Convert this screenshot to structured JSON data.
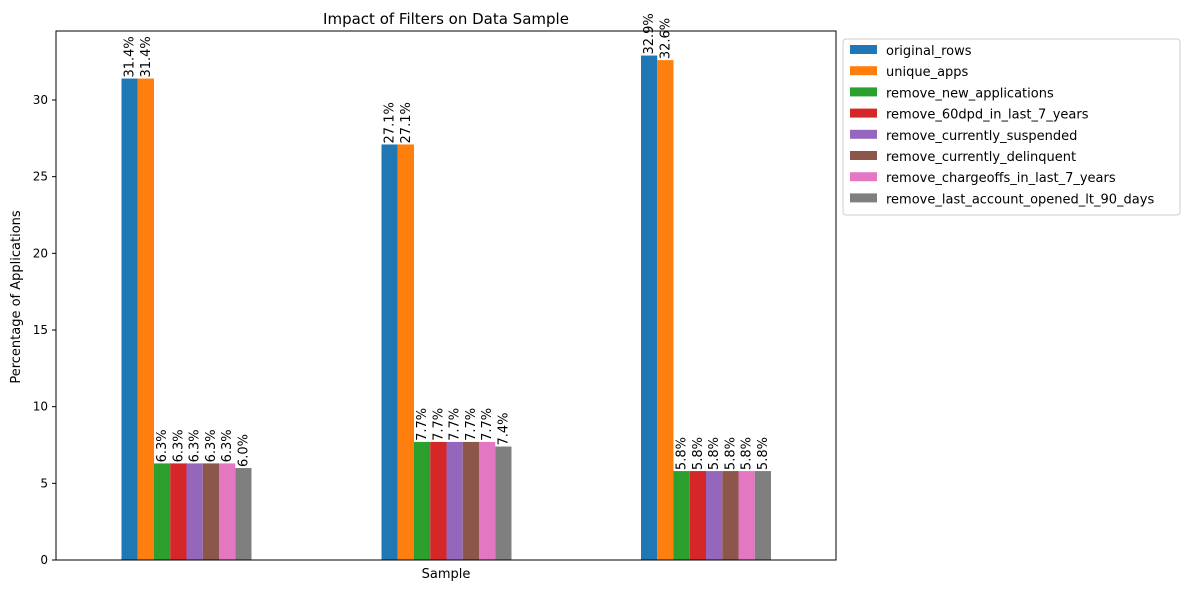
{
  "chart_data": {
    "type": "bar",
    "title": "Impact of Filters on Data Sample",
    "xlabel": "Sample",
    "ylabel": "Percentage of Applications",
    "ylim": [
      0,
      34.5
    ],
    "yticks": [
      "0",
      "5",
      "10",
      "15",
      "20",
      "25",
      "30"
    ],
    "legend_position": "outside-top-right",
    "grid": false,
    "groups": 3,
    "series": [
      {
        "name": "original_rows",
        "color": "#1f77b4",
        "values": [
          31.4,
          27.1,
          32.9
        ],
        "labels": [
          "31.4%",
          "27.1%",
          "32.9%"
        ]
      },
      {
        "name": "unique_apps",
        "color": "#ff7f0e",
        "values": [
          31.4,
          27.1,
          32.6
        ],
        "labels": [
          "31.4%",
          "27.1%",
          "32.6%"
        ]
      },
      {
        "name": "remove_new_applications",
        "color": "#2ca02c",
        "values": [
          6.3,
          7.7,
          5.8
        ],
        "labels": [
          "6.3%",
          "7.7%",
          "5.8%"
        ]
      },
      {
        "name": "remove_60dpd_in_last_7_years",
        "color": "#d62728",
        "values": [
          6.3,
          7.7,
          5.8
        ],
        "labels": [
          "6.3%",
          "7.7%",
          "5.8%"
        ]
      },
      {
        "name": "remove_currently_suspended",
        "color": "#9467bd",
        "values": [
          6.3,
          7.7,
          5.8
        ],
        "labels": [
          "6.3%",
          "7.7%",
          "5.8%"
        ]
      },
      {
        "name": "remove_currently_delinquent",
        "color": "#8c564b",
        "values": [
          6.3,
          7.7,
          5.8
        ],
        "labels": [
          "6.3%",
          "7.7%",
          "5.8%"
        ]
      },
      {
        "name": "remove_chargeoffs_in_last_7_years",
        "color": "#e377c2",
        "values": [
          6.3,
          7.7,
          5.8
        ],
        "labels": [
          "6.3%",
          "7.7%",
          "5.8%"
        ]
      },
      {
        "name": "remove_last_account_opened_lt_90_days",
        "color": "#7f7f7f",
        "values": [
          6.0,
          7.4,
          5.8
        ],
        "labels": [
          "6.0%",
          "7.4%",
          "5.8%"
        ]
      }
    ]
  }
}
